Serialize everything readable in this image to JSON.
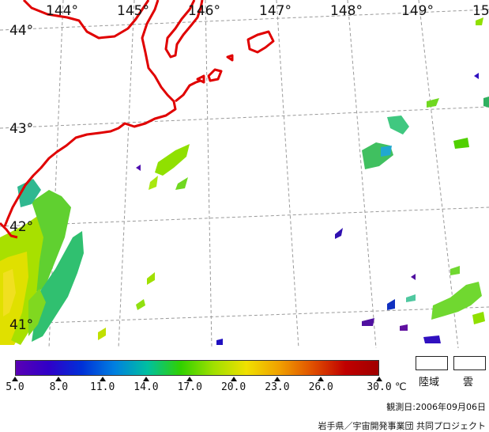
{
  "map": {
    "lon_labels": [
      "144°",
      "145°",
      "146°",
      "147°",
      "148°",
      "149°",
      "15"
    ],
    "lat_labels": [
      "44°",
      "43°",
      "42°",
      "41°"
    ],
    "coastline_color": "#e00000",
    "grid_color": "#999999"
  },
  "legend": {
    "scale_min": 5.0,
    "scale_max": 30.0,
    "tick_values": [
      "5.0",
      "8.0",
      "11.0",
      "14.0",
      "17.0",
      "20.0",
      "23.0",
      "26.0",
      "30.0"
    ],
    "unit": "℃",
    "colors": [
      "#5a00b4",
      "#3000c8",
      "#0030d8",
      "#0080e0",
      "#00c0a0",
      "#30d000",
      "#a0e000",
      "#f0e000",
      "#f0a000",
      "#e05000",
      "#c00000",
      "#a00000"
    ],
    "land_label": "陸域",
    "cloud_label": "雲"
  },
  "observation_date": "観測日:2006年09月06日",
  "credit": "岩手県／宇宙開発事業団 共同プロジェクト"
}
